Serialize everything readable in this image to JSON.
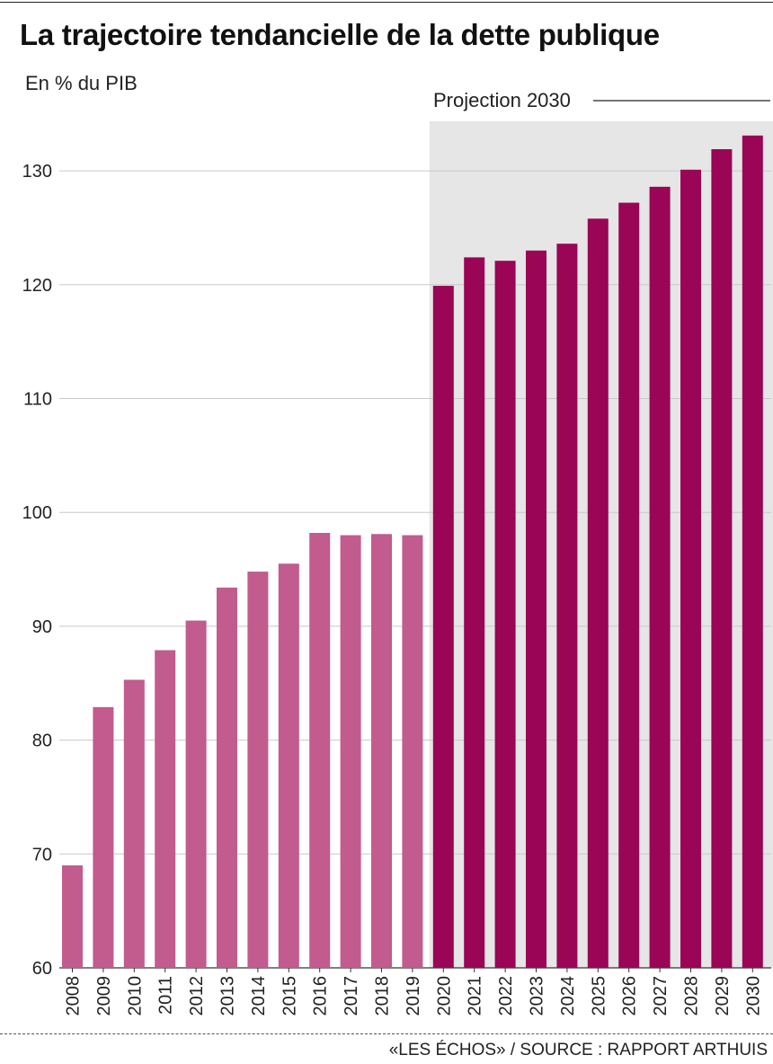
{
  "header": {
    "title": "La trajectoire tendancielle de la dette publique",
    "subtitle": "En % du PIB"
  },
  "footer": {
    "source": "«LES ÉCHOS» / SOURCE : RAPPORT ARTHUIS"
  },
  "colors": {
    "historical": "#c25b8e",
    "projection": "#9a0556",
    "projection_band": "#e6e6e6",
    "grid": "#c8c8c8"
  },
  "chart_data": {
    "type": "bar",
    "title": "La trajectoire tendancielle de la dette publique",
    "ylabel": "En % du PIB",
    "xlabel": "",
    "ylim": [
      60,
      135
    ],
    "yticks": [
      60,
      70,
      80,
      90,
      100,
      110,
      120,
      130
    ],
    "grid": true,
    "categories": [
      "2008",
      "2009",
      "2010",
      "2011",
      "2012",
      "2013",
      "2014",
      "2015",
      "2016",
      "2017",
      "2018",
      "2019",
      "2020",
      "2021",
      "2022",
      "2023",
      "2024",
      "2025",
      "2026",
      "2027",
      "2028",
      "2029",
      "2030"
    ],
    "values": [
      69.0,
      82.9,
      85.3,
      87.9,
      90.5,
      93.4,
      94.8,
      95.5,
      98.2,
      98.0,
      98.1,
      98.0,
      119.9,
      122.4,
      122.1,
      123.0,
      123.6,
      125.8,
      127.2,
      128.6,
      130.1,
      131.9,
      133.1
    ],
    "projection": {
      "label": "Projection 2030",
      "start": "2020",
      "end": "2030"
    }
  }
}
